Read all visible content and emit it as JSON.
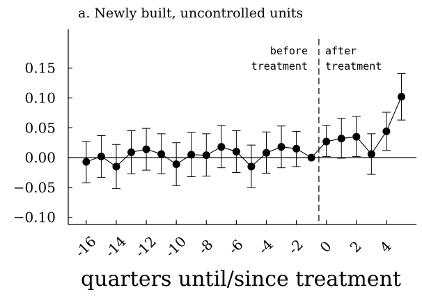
{
  "chart_data": {
    "type": "scatter",
    "title": "a. Newly built, uncontrolled units",
    "xlabel": "quarters until/since treatment",
    "ylabel": "",
    "xlim": [
      -17.2,
      6.0
    ],
    "ylim": [
      -0.112,
      0.215
    ],
    "x_ticks": [
      -16,
      -14,
      -12,
      -10,
      -8,
      -6,
      -4,
      -2,
      0,
      2,
      4
    ],
    "x_tick_labels": [
      "-16",
      "-14",
      "-12",
      "-10",
      "-8",
      "-6",
      "-4",
      "-2",
      "0",
      "2",
      "4"
    ],
    "y_ticks": [
      -0.1,
      -0.05,
      0.0,
      0.05,
      0.1,
      0.15
    ],
    "y_tick_labels": [
      "−0.10",
      "−0.05",
      "0.00",
      "0.05",
      "0.10",
      "0.15"
    ],
    "reference_line_y": 0,
    "treatment_line_x": -0.5,
    "annotations": {
      "before": [
        "before",
        "treatment"
      ],
      "after": [
        "after",
        "treatment"
      ]
    },
    "grid": false,
    "legend": "none",
    "series": [
      {
        "x": [
          -16,
          -15,
          -14,
          -13,
          -12,
          -11,
          -10,
          -9,
          -8,
          -7,
          -6,
          -5,
          -4,
          -3,
          -2,
          -1,
          0,
          1,
          2,
          3,
          4,
          5
        ],
        "y": [
          -0.007,
          0.002,
          -0.015,
          0.009,
          0.014,
          0.006,
          -0.011,
          0.005,
          0.004,
          0.018,
          0.01,
          -0.015,
          0.008,
          0.018,
          0.015,
          0.0,
          0.027,
          0.032,
          0.035,
          0.006,
          0.044,
          0.102
        ],
        "ci_low": [
          -0.042,
          -0.033,
          -0.052,
          -0.027,
          -0.021,
          -0.027,
          -0.047,
          -0.032,
          -0.031,
          -0.017,
          -0.025,
          -0.05,
          -0.026,
          -0.017,
          -0.015,
          0.0,
          0.002,
          -0.001,
          0.002,
          -0.028,
          0.012,
          0.063
        ],
        "ci_high": [
          0.027,
          0.037,
          0.022,
          0.045,
          0.049,
          0.04,
          0.025,
          0.042,
          0.04,
          0.054,
          0.045,
          0.021,
          0.043,
          0.053,
          0.044,
          0.0,
          0.054,
          0.066,
          0.069,
          0.04,
          0.076,
          0.141
        ]
      }
    ]
  }
}
